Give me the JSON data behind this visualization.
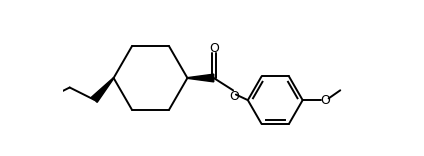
{
  "bg_color": "#ffffff",
  "line_color": "#000000",
  "lw": 1.4,
  "fig_width": 4.24,
  "fig_height": 1.56,
  "dpi": 100,
  "xlim": [
    0.0,
    8.5
  ],
  "ylim": [
    -2.2,
    2.2
  ]
}
